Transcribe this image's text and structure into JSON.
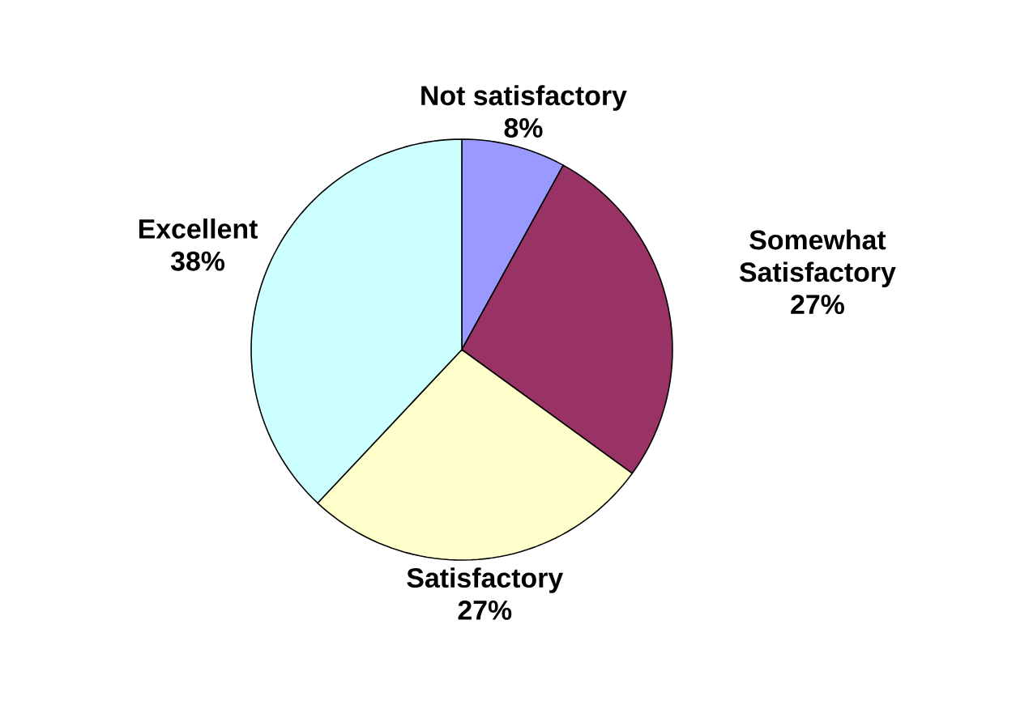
{
  "chart_data": {
    "type": "pie",
    "categories": [
      "Not satisfactory",
      "Somewhat Satisfactory",
      "Satisfactory",
      "Excellent"
    ],
    "values": [
      8,
      27,
      27,
      38
    ],
    "colors": [
      "#9999ff",
      "#993366",
      "#ffffcc",
      "#ccffff"
    ],
    "value_labels": [
      "8%",
      "27%",
      "27%",
      "38%"
    ]
  }
}
